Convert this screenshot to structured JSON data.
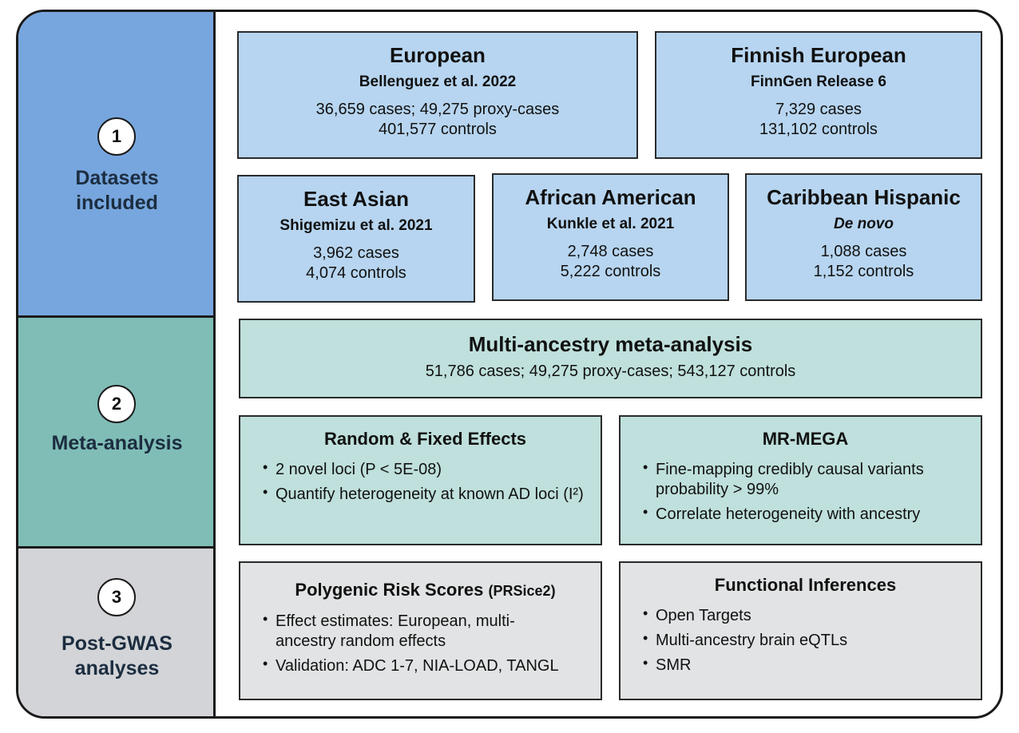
{
  "colors": {
    "stage1": "#77a6de",
    "stage2": "#7fbdb6",
    "stage3": "#d2d4d7",
    "border": "#1a1a1a"
  },
  "stages": [
    {
      "number": "1",
      "label": "Datasets\nincluded"
    },
    {
      "number": "2",
      "label": "Meta-analysis"
    },
    {
      "number": "3",
      "label": "Post-GWAS\nanalyses"
    }
  ],
  "datasets": [
    {
      "title": "European",
      "source": "Bellenguez et al. 2022",
      "line1": "36,659 cases; 49,275 proxy-cases",
      "line2": "401,577 controls"
    },
    {
      "title": "Finnish European",
      "source": "FinnGen Release 6",
      "line1": "7,329 cases",
      "line2": "131,102 controls"
    },
    {
      "title": "East Asian",
      "source": "Shigemizu et al. 2021",
      "line1": "3,962 cases",
      "line2": "4,074 controls"
    },
    {
      "title": "African American",
      "source": "Kunkle et al. 2021",
      "line1": "2,748 cases",
      "line2": "5,222 controls"
    },
    {
      "title": "Caribbean Hispanic",
      "source": "De novo",
      "line1": "1,088 cases",
      "line2": "1,152 controls"
    }
  ],
  "meta": {
    "title": "Multi-ancestry meta-analysis",
    "stats": "51,786 cases; 49,275 proxy-cases; 543,127 controls"
  },
  "random_fixed": {
    "title": "Random & Fixed Effects",
    "bullets": [
      "2 novel loci (P < 5E-08)",
      "Quantify heterogeneity at known AD loci (I²)"
    ]
  },
  "mrmega": {
    "title": "MR-MEGA",
    "bullets": [
      "Fine-mapping credibly causal variants probability > 99%",
      "Correlate heterogeneity with ancestry"
    ]
  },
  "prs": {
    "title": "Polygenic Risk Scores",
    "title_suffix": "(PRSice2)",
    "bullets": [
      "Effect estimates: European, multi-ancestry random effects",
      "Validation: ADC 1-7, NIA-LOAD, TANGL"
    ]
  },
  "functional": {
    "title": "Functional Inferences",
    "bullets": [
      "Open Targets",
      "Multi-ancestry brain eQTLs",
      "SMR"
    ]
  }
}
